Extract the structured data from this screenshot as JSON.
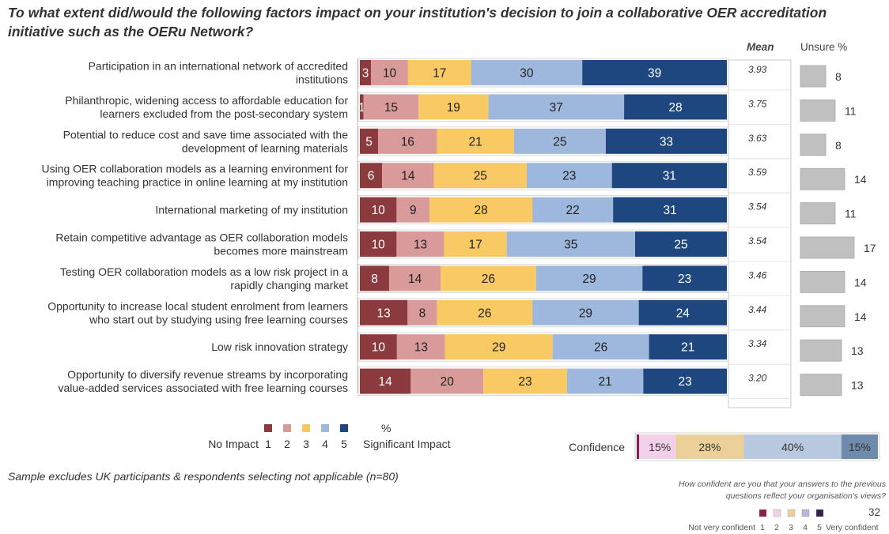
{
  "title": "To what extent did/would the following factors impact on your institution's decision to join a collaborative OER accreditation initiative such as the OERu Network?",
  "headers": {
    "mean": "Mean",
    "unsure": "Unsure %"
  },
  "chart_data": {
    "type": "bar",
    "stacked": true,
    "orientation": "horizontal",
    "categories": [
      "Participation in an international network of accredited institutions",
      "Philanthropic, widening access to affordable education for learners excluded from the post-secondary system",
      "Potential to reduce cost and save time associated with the development of learning materials",
      "Using OER collaboration models as a learning environment for improving teaching practice in online learning at my institution",
      "International marketing of my institution",
      "Retain competitive advantage as OER collaboration models becomes more mainstream",
      "Testing OER collaboration models as a low risk project in a rapidly changing market",
      "Opportunity to increase local student enrolment from learners who start out by studying using free learning courses",
      "Low risk innovation strategy",
      "Opportunity to diversify revenue streams by incorporating value-added services associated with free learning courses"
    ],
    "label_lines": [
      [
        "Participation in an international network of accredited",
        "institutions"
      ],
      [
        "Philanthropic, widening access to affordable education for",
        "learners excluded from the post-secondary system"
      ],
      [
        "Potential to reduce cost and save time associated with the",
        "development of learning materials"
      ],
      [
        "Using OER collaboration models as a learning environment for",
        "improving teaching practice in online learning at my institution"
      ],
      [
        "International marketing of my institution"
      ],
      [
        "Retain competitive advantage as OER collaboration models",
        "becomes more mainstream"
      ],
      [
        "Testing OER collaboration models as a low risk project in a",
        "rapidly changing market"
      ],
      [
        "Opportunity to increase local student enrolment from learners",
        "who start out by studying using free learning courses"
      ],
      [
        "Low risk innovation strategy"
      ],
      [
        "Opportunity to diversify revenue streams by incorporating",
        "value-added services associated with free learning courses"
      ]
    ],
    "series": [
      {
        "name": "1",
        "color": "#8b3a3e",
        "text_color": "#ffffff",
        "values": [
          3,
          1,
          5,
          6,
          10,
          10,
          8,
          13,
          10,
          14
        ]
      },
      {
        "name": "2",
        "color": "#d99a9a",
        "text_color": "#222222",
        "values": [
          10,
          15,
          16,
          14,
          9,
          13,
          14,
          8,
          13,
          20
        ]
      },
      {
        "name": "3",
        "color": "#f9c963",
        "text_color": "#222222",
        "values": [
          17,
          19,
          21,
          25,
          28,
          17,
          26,
          26,
          29,
          23
        ]
      },
      {
        "name": "4",
        "color": "#9db8dc",
        "text_color": "#222222",
        "values": [
          30,
          37,
          25,
          23,
          22,
          35,
          29,
          29,
          26,
          21
        ]
      },
      {
        "name": "5",
        "color": "#1f477f",
        "text_color": "#ffffff",
        "values": [
          39,
          28,
          33,
          31,
          31,
          25,
          23,
          24,
          21,
          23
        ]
      }
    ],
    "mean": [
      "3.93",
      "3.75",
      "3.63",
      "3.59",
      "3.54",
      "3.54",
      "3.46",
      "3.44",
      "3.34",
      "3.20"
    ],
    "unsure": [
      8,
      11,
      8,
      14,
      11,
      17,
      14,
      14,
      13,
      13
    ],
    "unsure_color": "#c0c0c0",
    "xlim": [
      0,
      100
    ],
    "legend": {
      "unit": "%",
      "left_text": "No Impact",
      "right_text": "Significant Impact",
      "items": [
        "1",
        "2",
        "3",
        "4",
        "5"
      ],
      "placement": "bottom-left"
    }
  },
  "confidence": {
    "label": "Confidence",
    "segments": [
      {
        "label": "1%",
        "value": 1,
        "color": "#8b1e4a"
      },
      {
        "label": "15%",
        "value": 15,
        "color": "#f2d0ea"
      },
      {
        "label": "28%",
        "value": 28,
        "color": "#ecd09a"
      },
      {
        "label": "40%",
        "value": 40,
        "color": "#b8c8de"
      },
      {
        "label": "15%",
        "value": 15,
        "color": "#6f8aaa"
      }
    ],
    "question": [
      "How confident are you that your answers to the previous",
      "questions reflect your organisation's views?"
    ],
    "legend": {
      "left_text": "Not very confident",
      "right_text": "Very confident",
      "items": [
        "1",
        "2",
        "3",
        "4",
        "5"
      ],
      "colors": [
        "#8b1e4a",
        "#f2d0ea",
        "#ecd09a",
        "#b8b4e0",
        "#3a1e4a"
      ]
    }
  },
  "footnote": "Sample excludes UK participants & respondents selecting not applicable (n=80)",
  "page_number": "32"
}
